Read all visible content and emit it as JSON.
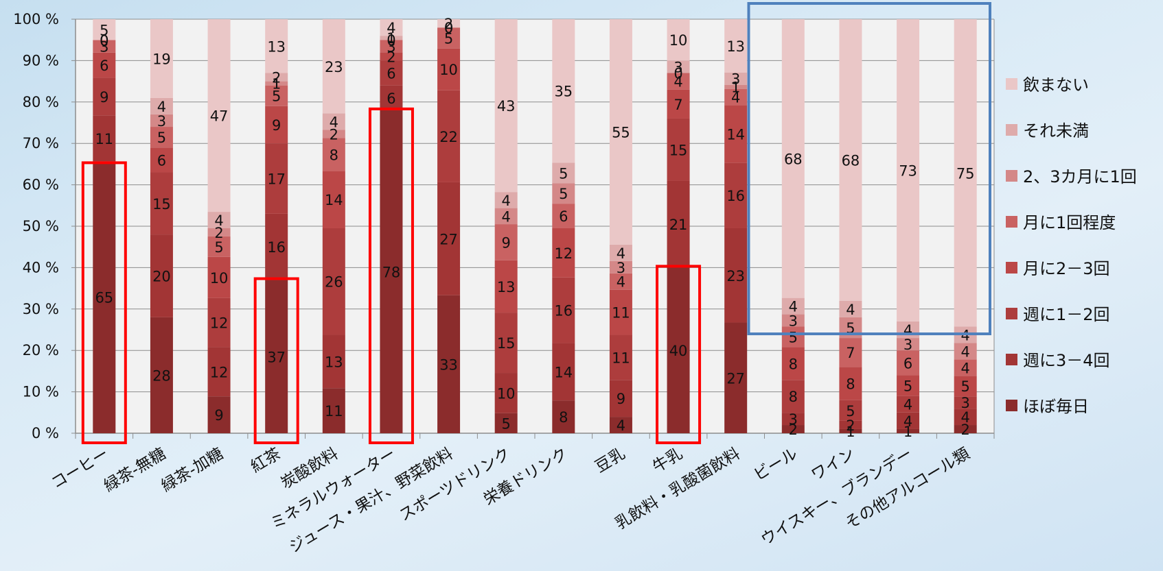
{
  "chart_data": {
    "type": "bar",
    "stacked": true,
    "percent": true,
    "title": "",
    "xlabel": "",
    "ylabel": "",
    "ylim": [
      0,
      100
    ],
    "y_ticks": [
      "0 %",
      "10 %",
      "20 %",
      "30 %",
      "40 %",
      "50 %",
      "60 %",
      "70 %",
      "80 %",
      "90 %",
      "100 %"
    ],
    "grid": "horizontal",
    "legend_position": "right",
    "categories": [
      "コーヒー",
      "緑茶-無糖",
      "緑茶-加糖",
      "紅茶",
      "炭酸飲料",
      "ミネラルウォーター",
      "ジュース・果汁、野菜飲料",
      "スポーツドリンク",
      "栄養ドリンク",
      "豆乳",
      "牛乳",
      "乳飲料・乳酸菌飲料",
      "ビール",
      "ワイン",
      "ウイスキー、ブランデー",
      "その他アルコール類"
    ],
    "series": [
      {
        "name": "ほぼ毎日",
        "color": "#8b2c2c",
        "values": [
          65,
          28,
          9,
          37,
          11,
          78,
          33,
          5,
          8,
          4,
          40,
          27,
          2,
          1,
          1,
          2
        ]
      },
      {
        "name": "週に3－4回",
        "color": "#a23535",
        "values": [
          11,
          20,
          12,
          16,
          13,
          6,
          27,
          10,
          14,
          9,
          21,
          23,
          3,
          2,
          4,
          4
        ]
      },
      {
        "name": "週に1－2回",
        "color": "#ad3d3d",
        "values": [
          9,
          15,
          12,
          17,
          26,
          6,
          22,
          15,
          16,
          11,
          15,
          16,
          8,
          5,
          4,
          3
        ]
      },
      {
        "name": "月に2－3回",
        "color": "#bb4747",
        "values": [
          6,
          6,
          10,
          9,
          14,
          2,
          10,
          13,
          12,
          11,
          7,
          14,
          8,
          8,
          5,
          5
        ]
      },
      {
        "name": "月に1回程度",
        "color": "#c96262",
        "values": [
          3,
          5,
          5,
          5,
          8,
          3,
          5,
          9,
          6,
          4,
          4,
          4,
          5,
          7,
          6,
          4
        ]
      },
      {
        "name": "2、3カ月に1回",
        "color": "#d48888",
        "values": [
          0,
          3,
          2,
          1,
          2,
          0,
          0,
          4,
          5,
          3,
          0,
          1,
          3,
          5,
          3,
          4
        ]
      },
      {
        "name": "それ未満",
        "color": "#deabab",
        "values": [
          0,
          4,
          4,
          2,
          4,
          1,
          0,
          4,
          5,
          4,
          3,
          3,
          4,
          4,
          4,
          4
        ]
      },
      {
        "name": "飲まない",
        "color": "#eac7c7",
        "values": [
          5,
          19,
          47,
          13,
          23,
          4,
          2,
          43,
          35,
          55,
          10,
          13,
          68,
          68,
          73,
          75
        ]
      }
    ],
    "highlights": [
      {
        "category": "コーヒー",
        "color": "#ff0000"
      },
      {
        "category": "紅茶",
        "color": "#ff0000"
      },
      {
        "category": "ミネラルウォーター",
        "color": "#ff0000"
      },
      {
        "category": "牛乳",
        "color": "#ff0000"
      },
      {
        "category": "ビール〜その他アルコール類",
        "color": "#4f81bd"
      }
    ]
  }
}
